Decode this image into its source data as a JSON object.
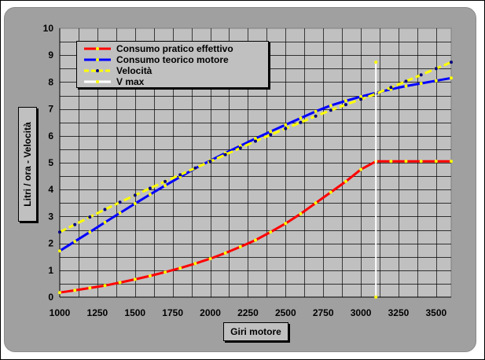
{
  "chart_data": {
    "type": "line",
    "title": "",
    "xlabel": "Giri motore",
    "ylabel": "Litri / ora - Velocità",
    "xlim": [
      1000,
      3600
    ],
    "ylim": [
      0,
      10
    ],
    "x_ticks": [
      "1000",
      "1250",
      "1500",
      "1750",
      "2000",
      "2250",
      "2500",
      "2750",
      "3000",
      "3250",
      "3500"
    ],
    "y_ticks": [
      "0",
      "1",
      "2",
      "3",
      "4",
      "5",
      "6",
      "7",
      "8",
      "9",
      "10"
    ],
    "grid": true,
    "legend_position": "top-left",
    "background": "#c0c0c0",
    "series": [
      {
        "name": "Consumo pratico effettivo",
        "color": "#ff0000",
        "marker_color": "#ffff00",
        "x": [
          1000,
          1100,
          1200,
          1300,
          1400,
          1500,
          1600,
          1700,
          1800,
          1900,
          2000,
          2100,
          2200,
          2300,
          2400,
          2500,
          2600,
          2700,
          2800,
          2900,
          3000,
          3100,
          3200,
          3300,
          3400,
          3500,
          3600
        ],
        "values": [
          0.17,
          0.25,
          0.34,
          0.43,
          0.54,
          0.66,
          0.79,
          0.93,
          1.08,
          1.25,
          1.43,
          1.64,
          1.87,
          2.12,
          2.42,
          2.74,
          3.1,
          3.5,
          3.9,
          4.3,
          4.75,
          5.05,
          5.05,
          5.05,
          5.05,
          5.05,
          5.05
        ]
      },
      {
        "name": "Consumo teorico motore",
        "color": "#0000ff",
        "marker_color": "#ffff00",
        "x": [
          1000,
          1100,
          1200,
          1300,
          1400,
          1500,
          1600,
          1700,
          1800,
          1900,
          2000,
          2100,
          2200,
          2300,
          2400,
          2500,
          2600,
          2700,
          2800,
          2900,
          3000,
          3100,
          3200,
          3300,
          3400,
          3500,
          3600
        ],
        "values": [
          1.72,
          2.07,
          2.42,
          2.78,
          3.13,
          3.48,
          3.82,
          4.15,
          4.47,
          4.79,
          5.08,
          5.36,
          5.63,
          5.9,
          6.16,
          6.41,
          6.66,
          6.91,
          7.13,
          7.3,
          7.46,
          7.6,
          7.73,
          7.85,
          7.95,
          8.05,
          8.15
        ]
      },
      {
        "name": "Velocità",
        "color": "#ffff00",
        "marker_color": "#000080",
        "dashed": true,
        "x": [
          1000,
          1100,
          1200,
          1300,
          1400,
          1500,
          1600,
          1700,
          1800,
          1900,
          2000,
          2100,
          2200,
          2300,
          2400,
          2500,
          2600,
          2700,
          2800,
          2900,
          3000,
          3100,
          3200,
          3300,
          3400,
          3500,
          3600
        ],
        "values": [
          2.42,
          2.7,
          2.98,
          3.26,
          3.53,
          3.79,
          4.05,
          4.3,
          4.55,
          4.8,
          5.05,
          5.3,
          5.55,
          5.8,
          6.04,
          6.27,
          6.5,
          6.73,
          6.95,
          7.16,
          7.36,
          7.56,
          7.8,
          8.03,
          8.27,
          8.5,
          8.74
        ]
      },
      {
        "name": "V max",
        "color": "#ffffff",
        "marker_color": "#ffff00",
        "x": [
          3100,
          3100
        ],
        "values": [
          0,
          8.74
        ]
      }
    ]
  }
}
